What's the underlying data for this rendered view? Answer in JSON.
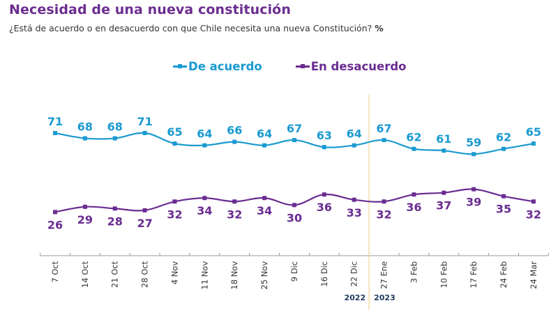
{
  "colors": {
    "title": "#6b2d8f",
    "de_acuerdo": "#1a9ad0",
    "en_desacuerdo": "#6a2c91",
    "divider": "#f0d890",
    "axis": "#999999",
    "year": "#1f3a5f"
  },
  "chart_data": {
    "type": "line",
    "title": "Necesidad de una nueva constitución",
    "subtitle": "¿Está de acuerdo o en desacuerdo con que Chile necesita una nueva Constitución?",
    "unit": "%",
    "xlabel": "",
    "ylabel": "",
    "legend_position": "top-center",
    "grid": false,
    "ylim": [
      20,
      75
    ],
    "categories": [
      "7 Oct",
      "14 Oct",
      "21 Oct",
      "28 Oct",
      "4 Nov",
      "11 Nov",
      "18 Nov",
      "25 Nov",
      "9 Dic",
      "16 Dic",
      "22 Dic",
      "27 Ene",
      "3 Feb",
      "10 Feb",
      "17 Feb",
      "24 Feb",
      "24 Mar"
    ],
    "series": [
      {
        "name": "De acuerdo",
        "values": [
          71,
          68,
          68,
          71,
          65,
          64,
          66,
          64,
          67,
          63,
          64,
          67,
          62,
          61,
          59,
          62,
          65
        ]
      },
      {
        "name": "En desacuerdo",
        "values": [
          26,
          29,
          28,
          27,
          32,
          34,
          32,
          34,
          30,
          36,
          33,
          32,
          36,
          37,
          39,
          35,
          32
        ]
      }
    ],
    "year_labels": [
      "2022",
      "2023"
    ],
    "year_divider_after": "22 Dic"
  }
}
